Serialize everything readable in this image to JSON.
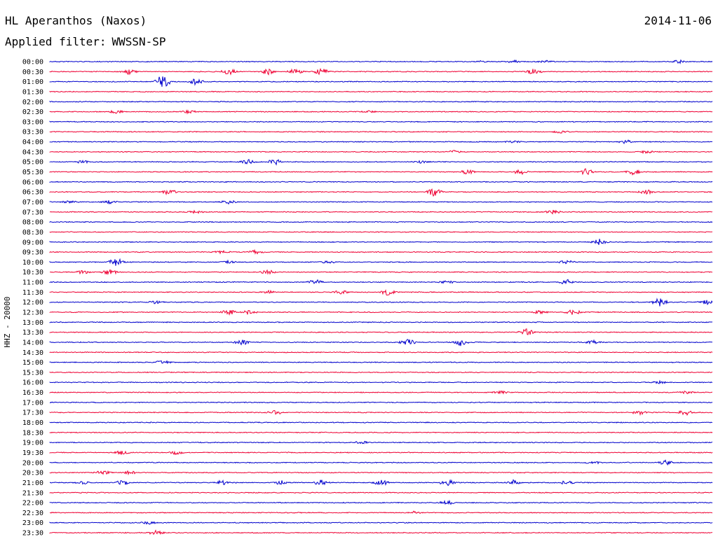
{
  "header": {
    "station": "HL Aperanthos (Naxos)",
    "date": "2014-11-06",
    "filter_label": "Applied filter:",
    "filter_value": "WWSSN-SP"
  },
  "axis_label": "HHZ - 20000",
  "chart_data": {
    "type": "line",
    "subtype": "helicorder",
    "title": "HL Aperanthos (Naxos)",
    "date": "2014-11-06",
    "filter": "WWSSN-SP",
    "channel_label": "HHZ - 20000",
    "row_colors": [
      "#0000cc",
      "#ee0033"
    ],
    "grid": false,
    "rows": [
      {
        "time": "00:00",
        "bursts": [
          [
            0.65,
            0.3
          ],
          [
            0.7,
            0.5
          ],
          [
            0.75,
            0.5
          ],
          [
            0.95,
            0.7
          ]
        ]
      },
      {
        "time": "00:30",
        "bursts": [
          [
            0.12,
            1.2
          ],
          [
            0.27,
            1.5
          ],
          [
            0.33,
            1.3
          ],
          [
            0.37,
            1.4
          ],
          [
            0.41,
            1.5
          ],
          [
            0.73,
            1.2
          ]
        ]
      },
      {
        "time": "01:00",
        "bursts": [
          [
            0.17,
            3.5
          ],
          [
            0.22,
            1.5
          ]
        ]
      },
      {
        "time": "01:30",
        "bursts": []
      },
      {
        "time": "02:00",
        "bursts": []
      },
      {
        "time": "02:30",
        "bursts": [
          [
            0.1,
            0.8
          ],
          [
            0.21,
            0.7
          ],
          [
            0.48,
            0.5
          ]
        ]
      },
      {
        "time": "03:00",
        "bursts": []
      },
      {
        "time": "03:30",
        "bursts": [
          [
            0.77,
            0.6
          ]
        ]
      },
      {
        "time": "04:00",
        "bursts": [
          [
            0.7,
            0.5
          ],
          [
            0.87,
            1.0
          ]
        ]
      },
      {
        "time": "04:30",
        "bursts": [
          [
            0.61,
            0.6
          ],
          [
            0.9,
            0.6
          ]
        ]
      },
      {
        "time": "05:00",
        "bursts": [
          [
            0.05,
            0.6
          ],
          [
            0.3,
            1.0
          ],
          [
            0.34,
            1.4
          ],
          [
            0.56,
            0.6
          ]
        ]
      },
      {
        "time": "05:30",
        "bursts": [
          [
            0.63,
            1.0
          ],
          [
            0.71,
            1.2
          ],
          [
            0.81,
            1.6
          ],
          [
            0.88,
            1.5
          ]
        ]
      },
      {
        "time": "06:00",
        "bursts": []
      },
      {
        "time": "06:30",
        "bursts": [
          [
            0.18,
            1.2
          ],
          [
            0.58,
            2.0
          ],
          [
            0.9,
            1.0
          ]
        ]
      },
      {
        "time": "07:00",
        "bursts": [
          [
            0.03,
            0.5
          ],
          [
            0.09,
            0.8
          ],
          [
            0.27,
            0.8
          ]
        ]
      },
      {
        "time": "07:30",
        "bursts": [
          [
            0.22,
            0.6
          ],
          [
            0.76,
            1.0
          ]
        ]
      },
      {
        "time": "08:00",
        "bursts": []
      },
      {
        "time": "08:30",
        "bursts": []
      },
      {
        "time": "09:00",
        "bursts": [
          [
            0.83,
            1.4
          ]
        ]
      },
      {
        "time": "09:30",
        "bursts": [
          [
            0.26,
            0.8
          ],
          [
            0.31,
            0.8
          ]
        ]
      },
      {
        "time": "10:00",
        "bursts": [
          [
            0.1,
            1.8
          ],
          [
            0.27,
            0.6
          ],
          [
            0.42,
            0.6
          ],
          [
            0.78,
            0.9
          ]
        ]
      },
      {
        "time": "10:30",
        "bursts": [
          [
            0.05,
            0.8
          ],
          [
            0.09,
            1.2
          ],
          [
            0.33,
            1.0
          ]
        ]
      },
      {
        "time": "11:00",
        "bursts": [
          [
            0.4,
            1.2
          ],
          [
            0.6,
            0.6
          ],
          [
            0.78,
            1.2
          ]
        ]
      },
      {
        "time": "11:30",
        "bursts": [
          [
            0.33,
            0.6
          ],
          [
            0.44,
            0.9
          ],
          [
            0.51,
            1.4
          ]
        ]
      },
      {
        "time": "12:00",
        "bursts": [
          [
            0.16,
            0.6
          ],
          [
            0.92,
            2.0
          ],
          [
            0.99,
            1.0
          ]
        ]
      },
      {
        "time": "12:30",
        "bursts": [
          [
            0.27,
            1.4
          ],
          [
            0.3,
            1.0
          ],
          [
            0.74,
            0.8
          ],
          [
            0.79,
            1.2
          ]
        ]
      },
      {
        "time": "13:00",
        "bursts": []
      },
      {
        "time": "13:30",
        "bursts": [
          [
            0.72,
            1.6
          ]
        ]
      },
      {
        "time": "14:00",
        "bursts": [
          [
            0.29,
            1.4
          ],
          [
            0.54,
            1.6
          ],
          [
            0.62,
            1.6
          ],
          [
            0.82,
            1.0
          ]
        ]
      },
      {
        "time": "14:30",
        "bursts": []
      },
      {
        "time": "15:00",
        "bursts": [
          [
            0.17,
            0.8
          ]
        ]
      },
      {
        "time": "15:30",
        "bursts": []
      },
      {
        "time": "16:00",
        "bursts": [
          [
            0.92,
            0.6
          ]
        ]
      },
      {
        "time": "16:30",
        "bursts": [
          [
            0.68,
            0.6
          ],
          [
            0.96,
            0.6
          ]
        ]
      },
      {
        "time": "17:00",
        "bursts": []
      },
      {
        "time": "17:30",
        "bursts": [
          [
            0.34,
            1.0
          ],
          [
            0.89,
            1.0
          ],
          [
            0.96,
            1.2
          ]
        ]
      },
      {
        "time": "18:00",
        "bursts": []
      },
      {
        "time": "18:30",
        "bursts": []
      },
      {
        "time": "19:00",
        "bursts": [
          [
            0.47,
            0.6
          ]
        ]
      },
      {
        "time": "19:30",
        "bursts": [
          [
            0.11,
            1.0
          ],
          [
            0.19,
            0.8
          ]
        ]
      },
      {
        "time": "20:00",
        "bursts": [
          [
            0.82,
            0.6
          ],
          [
            0.93,
            1.2
          ]
        ]
      },
      {
        "time": "20:30",
        "bursts": [
          [
            0.08,
            1.0
          ],
          [
            0.12,
            0.8
          ]
        ]
      },
      {
        "time": "21:00",
        "bursts": [
          [
            0.05,
            0.6
          ],
          [
            0.11,
            1.1
          ],
          [
            0.26,
            1.0
          ],
          [
            0.35,
            1.0
          ],
          [
            0.41,
            1.4
          ],
          [
            0.5,
            1.4
          ],
          [
            0.6,
            1.5
          ],
          [
            0.7,
            1.3
          ],
          [
            0.78,
            1.0
          ]
        ]
      },
      {
        "time": "21:30",
        "bursts": []
      },
      {
        "time": "22:00",
        "bursts": [
          [
            0.6,
            1.0
          ]
        ]
      },
      {
        "time": "22:30",
        "bursts": [
          [
            0.55,
            0.6
          ]
        ]
      },
      {
        "time": "23:00",
        "bursts": [
          [
            0.15,
            0.6
          ]
        ]
      },
      {
        "time": "23:30",
        "bursts": [
          [
            0.16,
            1.0
          ]
        ]
      }
    ]
  }
}
